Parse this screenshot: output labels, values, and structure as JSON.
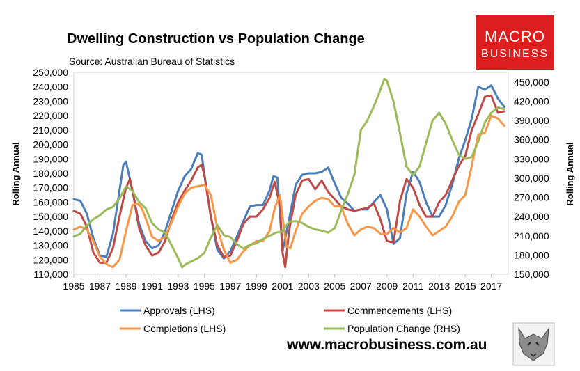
{
  "chart_data": {
    "type": "line",
    "title": "Dwelling Construction vs Population Change",
    "subtitle": "Source: Australian Bureau of Statistics",
    "ylabel_left": "Rolling Annual",
    "ylabel_right": "Rolling Annual",
    "xlim": [
      1985,
      2018.3
    ],
    "ylim_left": [
      110000,
      250000
    ],
    "ylim_right": [
      150000,
      465000
    ],
    "x_ticks": [
      "1985",
      "1987",
      "1989",
      "1991",
      "1993",
      "1995",
      "1997",
      "1999",
      "2001",
      "2003",
      "2005",
      "2007",
      "2009",
      "2011",
      "2013",
      "2015",
      "2017"
    ],
    "y_left_ticks": [
      "110,000",
      "120,000",
      "130,000",
      "140,000",
      "150,000",
      "160,000",
      "170,000",
      "180,000",
      "190,000",
      "200,000",
      "210,000",
      "220,000",
      "230,000",
      "240,000",
      "250,000"
    ],
    "y_right_ticks": [
      "150,000",
      "180,000",
      "210,000",
      "240,000",
      "270,000",
      "300,000",
      "330,000",
      "360,000",
      "390,000",
      "420,000",
      "450,000"
    ],
    "series": [
      {
        "name": "Approvals (LHS)",
        "axis": "left",
        "color": "#4a7ebb",
        "x": [
          1985,
          1985.5,
          1986,
          1986.5,
          1987,
          1987.5,
          1988,
          1988.5,
          1988.8,
          1989,
          1989.5,
          1990,
          1990.5,
          1991,
          1991.5,
          1992,
          1992.5,
          1993,
          1993.5,
          1994,
          1994.5,
          1994.8,
          1995,
          1995.5,
          1996,
          1996.5,
          1997,
          1997.5,
          1998,
          1998.5,
          1999,
          1999.5,
          2000,
          2000.3,
          2000.6,
          2001,
          2001.5,
          2002,
          2002.5,
          2003,
          2003.5,
          2004,
          2004.5,
          2005,
          2005.5,
          2006,
          2006.5,
          2007,
          2007.5,
          2008,
          2008.5,
          2009,
          2009.5,
          2010,
          2010.5,
          2011,
          2011.5,
          2012,
          2012.5,
          2013,
          2013.5,
          2014,
          2014.5,
          2015,
          2015.5,
          2016,
          2016.5,
          2017,
          2017.5,
          2018
        ],
        "y": [
          162000,
          161000,
          152000,
          135000,
          123000,
          122000,
          138000,
          168000,
          186000,
          188000,
          168000,
          145000,
          133000,
          128000,
          130000,
          140000,
          154000,
          168000,
          178000,
          183000,
          194000,
          193000,
          180000,
          150000,
          127000,
          121000,
          126000,
          136000,
          147000,
          157000,
          158000,
          158000,
          168000,
          178000,
          177000,
          126000,
          148000,
          172000,
          179000,
          180000,
          180000,
          181000,
          184000,
          173000,
          163000,
          159000,
          154000,
          155000,
          155000,
          160000,
          165000,
          155000,
          131000,
          135000,
          166000,
          181000,
          174000,
          160000,
          150000,
          150000,
          158000,
          172000,
          190000,
          203000,
          218000,
          240000,
          238000,
          241000,
          232000,
          226000
        ]
      },
      {
        "name": "Commencements (LHS)",
        "axis": "left",
        "color": "#be4b48",
        "x": [
          1985,
          1985.5,
          1986,
          1986.5,
          1987,
          1987.5,
          1988,
          1988.5,
          1989,
          1989.3,
          1989.6,
          1990,
          1990.5,
          1991,
          1991.5,
          1992,
          1992.5,
          1993,
          1993.5,
          1994,
          1994.5,
          1994.8,
          1995,
          1995.5,
          1996,
          1996.5,
          1997,
          1997.5,
          1998,
          1998.5,
          1999,
          1999.5,
          2000,
          2000.4,
          2000.8,
          2001,
          2001.2,
          2001.5,
          2002,
          2002.5,
          2003,
          2003.5,
          2004,
          2004.5,
          2005,
          2005.5,
          2006,
          2006.5,
          2007,
          2007.5,
          2008,
          2008.5,
          2009,
          2009.5,
          2010,
          2010.5,
          2011,
          2011.5,
          2012,
          2012.5,
          2013,
          2013.5,
          2014,
          2014.5,
          2015,
          2015.5,
          2016,
          2016.5,
          2017,
          2017.5,
          2018
        ],
        "y": [
          154000,
          152000,
          143000,
          125000,
          118000,
          118000,
          128000,
          150000,
          170000,
          176000,
          163000,
          142000,
          130000,
          123000,
          125000,
          133000,
          148000,
          160000,
          168000,
          175000,
          184000,
          186000,
          179000,
          150000,
          130000,
          122000,
          123000,
          133000,
          145000,
          150000,
          150000,
          155000,
          163000,
          174000,
          157000,
          125000,
          115000,
          140000,
          165000,
          175000,
          176000,
          169000,
          175000,
          167000,
          162000,
          157000,
          155000,
          154000,
          155000,
          156000,
          159000,
          148000,
          133000,
          132000,
          161000,
          176000,
          170000,
          158000,
          150000,
          150000,
          160000,
          165000,
          175000,
          185000,
          192000,
          210000,
          221000,
          233000,
          234000,
          222000,
          223000
        ]
      },
      {
        "name": "Completions (LHS)",
        "axis": "left",
        "color": "#f79646",
        "x": [
          1985,
          1985.5,
          1986,
          1986.5,
          1987,
          1987.5,
          1988,
          1988.5,
          1989,
          1989.5,
          1989.9,
          1990.2,
          1990.5,
          1991,
          1991.5,
          1992,
          1992.5,
          1993,
          1993.5,
          1994,
          1994.5,
          1995,
          1995.5,
          1996,
          1996.5,
          1997,
          1997.5,
          1998,
          1998.5,
          1999,
          1999.5,
          2000,
          2000.4,
          2000.8,
          2001,
          2001.3,
          2001.6,
          2002,
          2002.5,
          2003,
          2003.5,
          2004,
          2004.5,
          2005,
          2005.5,
          2006,
          2006.5,
          2007,
          2007.5,
          2008,
          2008.5,
          2009,
          2009.5,
          2010,
          2010.5,
          2011,
          2011.5,
          2012,
          2012.5,
          2013,
          2013.5,
          2014,
          2014.5,
          2015,
          2015.5,
          2016,
          2016.5,
          2017,
          2017.5,
          2018
        ],
        "y": [
          141000,
          143000,
          141000,
          133000,
          122000,
          117000,
          115000,
          120000,
          140000,
          158000,
          159000,
          156000,
          149000,
          136000,
          133000,
          136000,
          146000,
          157000,
          166000,
          170000,
          171000,
          172000,
          165000,
          142000,
          127000,
          118000,
          120000,
          126000,
          130000,
          133000,
          133000,
          140000,
          156000,
          165000,
          150000,
          129000,
          128000,
          140000,
          152000,
          157000,
          161000,
          163000,
          162000,
          157000,
          157000,
          145000,
          137000,
          141000,
          143000,
          142000,
          138000,
          138000,
          142000,
          139000,
          142000,
          155000,
          150000,
          143000,
          137000,
          140000,
          143000,
          150000,
          160000,
          165000,
          185000,
          207000,
          208000,
          220000,
          218000,
          213000
        ]
      },
      {
        "name": "Population Change (RHS)",
        "axis": "right",
        "color": "#9bbb59",
        "x": [
          1985,
          1985.5,
          1986,
          1986.5,
          1987,
          1987.5,
          1988,
          1988.5,
          1989,
          1989.5,
          1990,
          1990.5,
          1991,
          1991.5,
          1992,
          1992.5,
          1993,
          1993.3,
          1993.6,
          1994,
          1994.5,
          1995,
          1995.5,
          1996,
          1996.5,
          1997,
          1997.5,
          1998,
          1998.5,
          1999,
          1999.5,
          2000,
          2000.5,
          2001,
          2001.5,
          2002,
          2002.5,
          2003,
          2003.5,
          2004,
          2004.5,
          2005,
          2005.5,
          2006,
          2006.5,
          2007,
          2007.5,
          2008,
          2008.5,
          2008.8,
          2009,
          2009.5,
          2010,
          2010.5,
          2011,
          2011.5,
          2012,
          2012.5,
          2013,
          2013.5,
          2014,
          2014.5,
          2015,
          2015.5,
          2016,
          2016.5,
          2017,
          2017.5,
          2018
        ],
        "y": [
          209000,
          213000,
          226000,
          236000,
          242000,
          251000,
          255000,
          268000,
          287000,
          280000,
          263000,
          253000,
          230000,
          220000,
          215000,
          195000,
          175000,
          161000,
          166000,
          170000,
          175000,
          183000,
          207000,
          227000,
          211000,
          208000,
          197000,
          190000,
          196000,
          198000,
          205000,
          210000,
          215000,
          217000,
          232000,
          233000,
          230000,
          224000,
          220000,
          218000,
          215000,
          222000,
          250000,
          275000,
          305000,
          375000,
          390000,
          412000,
          438000,
          455000,
          452000,
          420000,
          370000,
          318000,
          305000,
          318000,
          355000,
          390000,
          402000,
          385000,
          360000,
          337000,
          330000,
          333000,
          357000,
          387000,
          402000,
          410000,
          408000
        ]
      }
    ]
  },
  "legend": {
    "position": "bottom"
  },
  "branding": {
    "logo_line1": "MACRO",
    "logo_line2": "BUSINESS",
    "logo_color": "#dc1e1e",
    "website": "www.macrobusiness.com.au",
    "mascot_icon": "wolf-icon"
  }
}
